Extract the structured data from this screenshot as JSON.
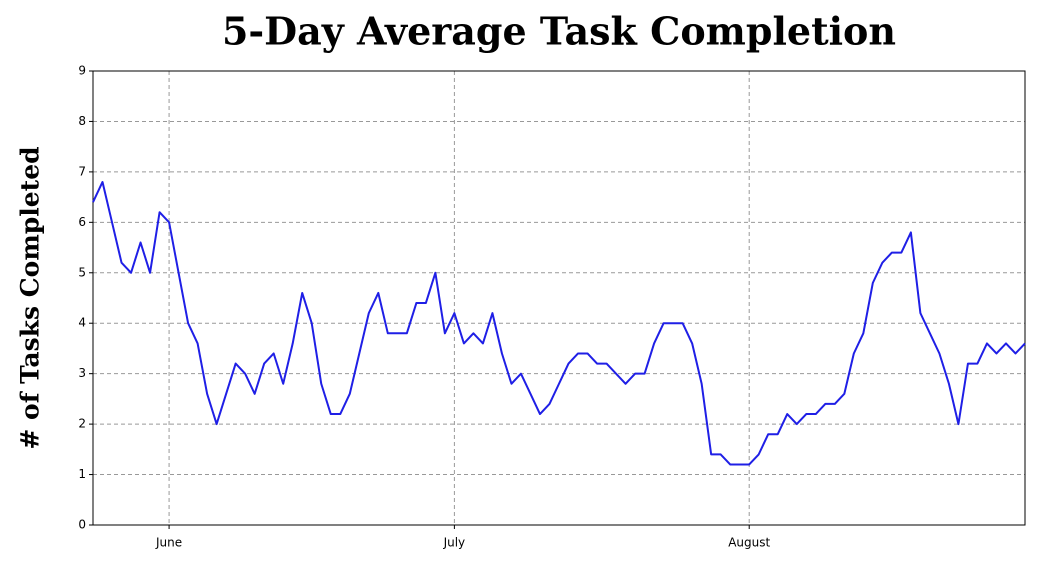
{
  "chart_data": {
    "type": "line",
    "title": "5-Day Average Task Completion",
    "y_label": "# of Tasks Completed",
    "categories": [
      null,
      null,
      null,
      null,
      null,
      null,
      null,
      null,
      "June",
      null,
      null,
      null,
      null,
      null,
      null,
      null,
      null,
      null,
      null,
      null,
      null,
      null,
      null,
      null,
      null,
      null,
      null,
      null,
      null,
      null,
      null,
      null,
      null,
      null,
      null,
      null,
      null,
      null,
      "July",
      null,
      null,
      null,
      null,
      null,
      null,
      null,
      null,
      null,
      null,
      null,
      null,
      null,
      null,
      null,
      null,
      null,
      null,
      null,
      null,
      null,
      null,
      null,
      null,
      null,
      null,
      null,
      null,
      null,
      null,
      "August",
      null,
      null,
      null,
      null,
      null,
      null,
      null,
      null,
      null,
      null,
      null,
      null,
      null,
      null,
      null,
      null,
      null,
      null,
      null,
      null,
      null,
      null,
      null,
      null,
      null,
      null,
      null,
      null,
      null
    ],
    "values": [
      6.4,
      6.8,
      6.0,
      5.2,
      5.0,
      5.6,
      5.0,
      6.2,
      6.0,
      5.0,
      4.0,
      3.6,
      2.6,
      2.0,
      2.6,
      3.2,
      3.0,
      2.6,
      3.2,
      3.4,
      2.8,
      3.6,
      4.6,
      4.0,
      2.8,
      2.2,
      2.2,
      2.6,
      3.4,
      4.2,
      4.6,
      3.8,
      3.8,
      3.8,
      4.4,
      4.4,
      5.0,
      3.8,
      4.2,
      3.6,
      3.8,
      3.6,
      4.2,
      3.4,
      2.8,
      3.0,
      2.6,
      2.2,
      2.4,
      2.8,
      3.2,
      3.4,
      3.4,
      3.2,
      3.2,
      3.0,
      2.8,
      3.0,
      3.0,
      3.6,
      4.0,
      4.0,
      4.0,
      3.6,
      2.8,
      1.4,
      1.4,
      1.2,
      1.2,
      1.2,
      1.4,
      1.8,
      1.8,
      2.2,
      2.0,
      2.2,
      2.2,
      2.4,
      2.4,
      2.6,
      3.4,
      3.8,
      4.8,
      5.2,
      5.4,
      5.4,
      5.8,
      4.2,
      3.8,
      3.4,
      2.8,
      2.0,
      3.2,
      3.2,
      3.6,
      3.4,
      3.6,
      3.4,
      3.6
    ],
    "color": "#1f1fe6",
    "ylim": [
      0,
      9
    ],
    "yticks": [
      0,
      1,
      2,
      3,
      4,
      5,
      6,
      7,
      8,
      9
    ],
    "grid": true
  }
}
